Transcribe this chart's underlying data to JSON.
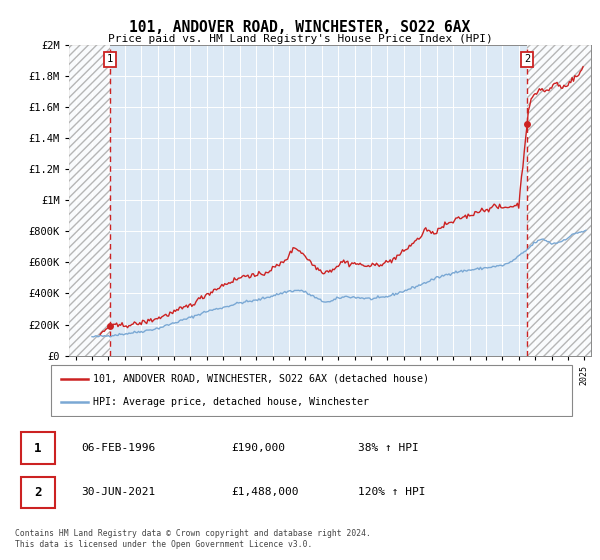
{
  "title": "101, ANDOVER ROAD, WINCHESTER, SO22 6AX",
  "subtitle": "Price paid vs. HM Land Registry's House Price Index (HPI)",
  "ylim": [
    0,
    2000000
  ],
  "yticks": [
    0,
    200000,
    400000,
    600000,
    800000,
    1000000,
    1200000,
    1400000,
    1600000,
    1800000,
    2000000
  ],
  "ytick_labels": [
    "£0",
    "£200K",
    "£400K",
    "£600K",
    "£800K",
    "£1M",
    "£1.2M",
    "£1.4M",
    "£1.6M",
    "£1.8M",
    "£2M"
  ],
  "xlim_start": 1993.6,
  "xlim_end": 2025.4,
  "xticks": [
    1994,
    1995,
    1996,
    1997,
    1998,
    1999,
    2000,
    2001,
    2002,
    2003,
    2004,
    2005,
    2006,
    2007,
    2008,
    2009,
    2010,
    2011,
    2012,
    2013,
    2014,
    2015,
    2016,
    2017,
    2018,
    2019,
    2020,
    2021,
    2022,
    2023,
    2024,
    2025
  ],
  "hpi_color": "#7aa8d4",
  "price_color": "#cc2222",
  "dashed_line_color": "#cc2222",
  "background_color": "#dce9f5",
  "point1_x": 1996.1,
  "point1_y": 190000,
  "point2_x": 2021.5,
  "point2_y": 1488000,
  "annotation1": "1",
  "annotation2": "2",
  "legend_line1": "101, ANDOVER ROAD, WINCHESTER, SO22 6AX (detached house)",
  "legend_line2": "HPI: Average price, detached house, Winchester",
  "table_row1": [
    "1",
    "06-FEB-1996",
    "£190,000",
    "38% ↑ HPI"
  ],
  "table_row2": [
    "2",
    "30-JUN-2021",
    "£1,488,000",
    "120% ↑ HPI"
  ],
  "footer": "Contains HM Land Registry data © Crown copyright and database right 2024.\nThis data is licensed under the Open Government Licence v3.0."
}
